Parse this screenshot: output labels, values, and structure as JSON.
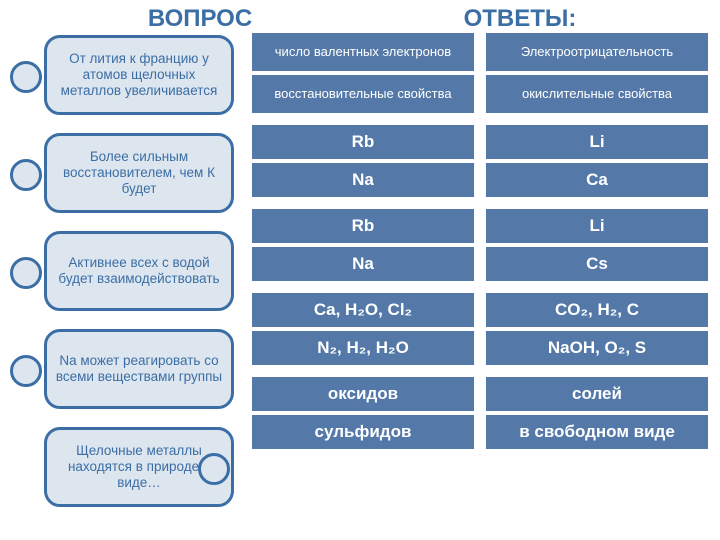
{
  "header": {
    "left": "ВОПРОС",
    "right": "ОТВЕТЫ:"
  },
  "questions": [
    {
      "text": "От лития к францию у атомов щелочных металлов увеличивается",
      "dotSide": "left"
    },
    {
      "text": "Более сильным восстановителем, чем К будет",
      "dotSide": "left"
    },
    {
      "text": "Активнее всех с водой будет взаимодействовать",
      "dotSide": "left"
    },
    {
      "text": "Na может реагировать со всеми веществами группы",
      "dotSide": "left"
    },
    {
      "text": "Щелочные металлы находятся в природе в виде…",
      "dotSide": "right"
    }
  ],
  "answers": [
    {
      "rows": [
        {
          "cls": "small",
          "cells": [
            "число валентных электронов",
            "Электроотрицательность"
          ]
        },
        {
          "cls": "small",
          "cells": [
            "восстановительные свойства",
            "окислительные свойства"
          ]
        }
      ]
    },
    {
      "rows": [
        {
          "cls": "mid",
          "cells": [
            "Rb",
            "Li"
          ]
        },
        {
          "cls": "mid",
          "cells": [
            "Na",
            "Ca"
          ]
        }
      ]
    },
    {
      "rows": [
        {
          "cls": "mid",
          "cells": [
            "Rb",
            "Li"
          ]
        },
        {
          "cls": "mid",
          "cells": [
            "Na",
            "Cs"
          ]
        }
      ]
    },
    {
      "rows": [
        {
          "cls": "mid",
          "cells": [
            "Ca, H₂O, Cl₂",
            "CO₂, H₂, C"
          ]
        },
        {
          "cls": "mid",
          "cells": [
            "N₂, H₂, H₂O",
            "NaOH, O₂, S"
          ]
        }
      ]
    },
    {
      "rows": [
        {
          "cls": "lower",
          "cells": [
            "оксидов",
            "солей"
          ]
        },
        {
          "cls": "lower",
          "cells": [
            "сульфидов",
            "в свободном виде"
          ]
        }
      ]
    }
  ],
  "colors": {
    "brand": "#3b6ea5",
    "cellBg": "#5479a9",
    "bubbleBg": "#dde5ef",
    "pageBg": "#ffffff"
  }
}
